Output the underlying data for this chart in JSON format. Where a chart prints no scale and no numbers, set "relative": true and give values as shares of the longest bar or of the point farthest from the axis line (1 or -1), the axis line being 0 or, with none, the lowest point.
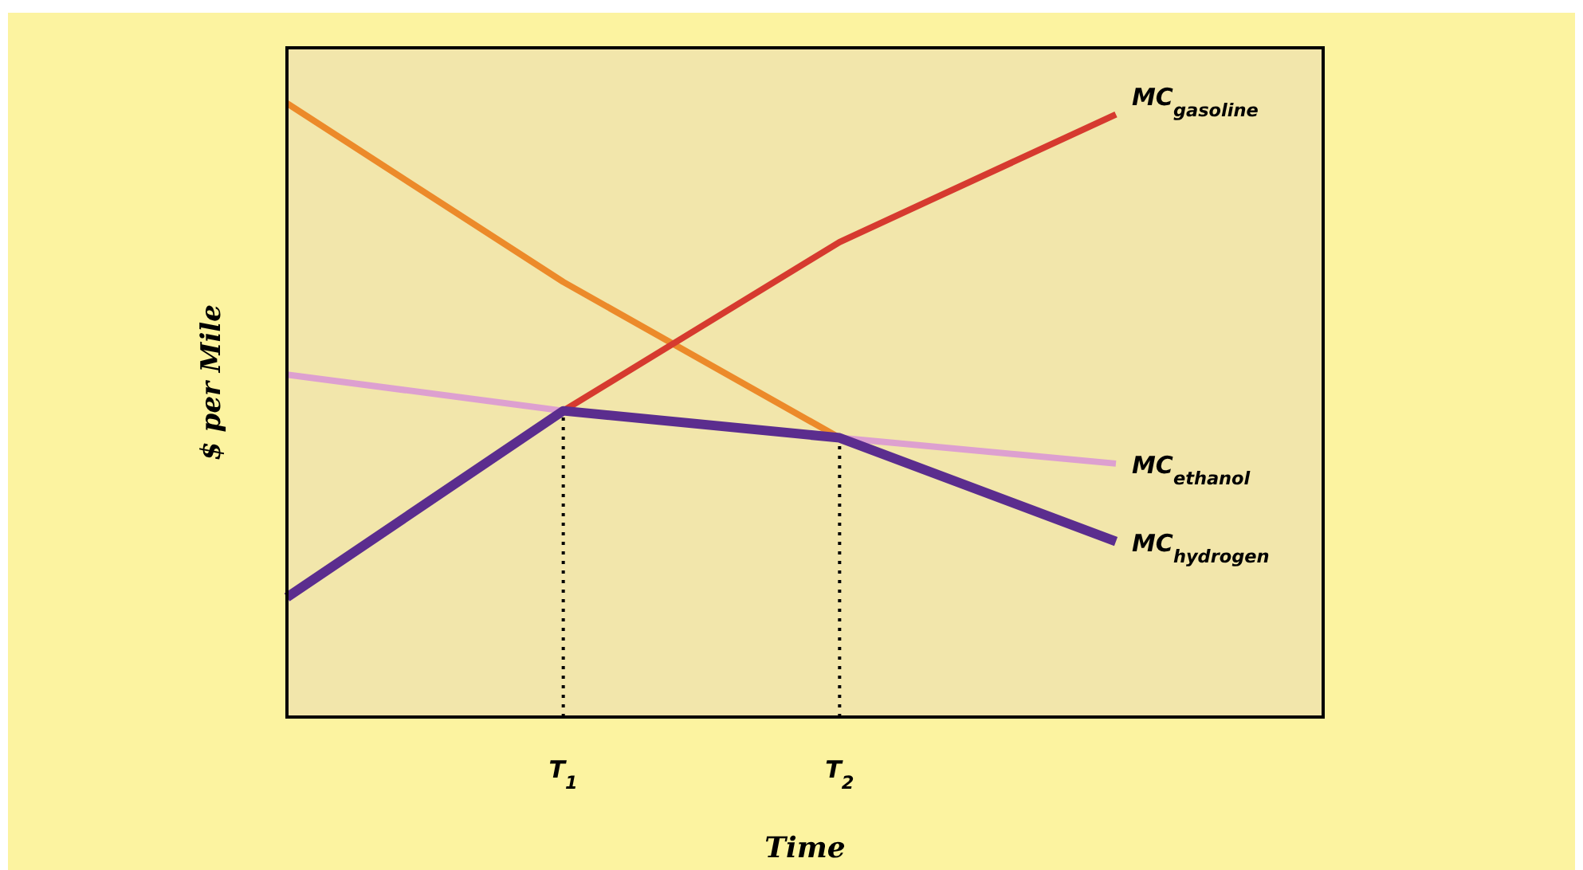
{
  "chart_data": {
    "type": "line",
    "relative": true,
    "xlabel": "Time",
    "ylabel": "$ per Mile",
    "categories": [
      null,
      "T$_{1}$",
      "T$_{2}$",
      null
    ],
    "tick_labels": "x",
    "legend": false,
    "line_style": "solid",
    "marker": "none",
    "series": [
      {
        "color": "#ec8a2a",
        "values": [
          1.0,
          0.709,
          0.455,
          null
        ]
      },
      {
        "name": "MC$_{gasoline}$",
        "color": "#d63a2f",
        "values": [
          null,
          0.499,
          0.774,
          0.982
        ]
      },
      {
        "name": "MC$_{ethanol}$",
        "color": "#dda0d0",
        "values": [
          0.558,
          0.499,
          0.455,
          0.413
        ]
      },
      {
        "name": "MC$_{hydrogen}$",
        "color": "#5b2d8e",
        "values": [
          0.195,
          0.499,
          0.455,
          0.286
        ]
      }
    ],
    "ref_lines": [
      {
        "axis": "x",
        "value": "T$_{1}$",
        "line_style": "dotted",
        "color": "#000000"
      },
      {
        "axis": "x",
        "value": "T$_{2}$",
        "line_style": "dotted",
        "color": "#000000"
      }
    ]
  }
}
